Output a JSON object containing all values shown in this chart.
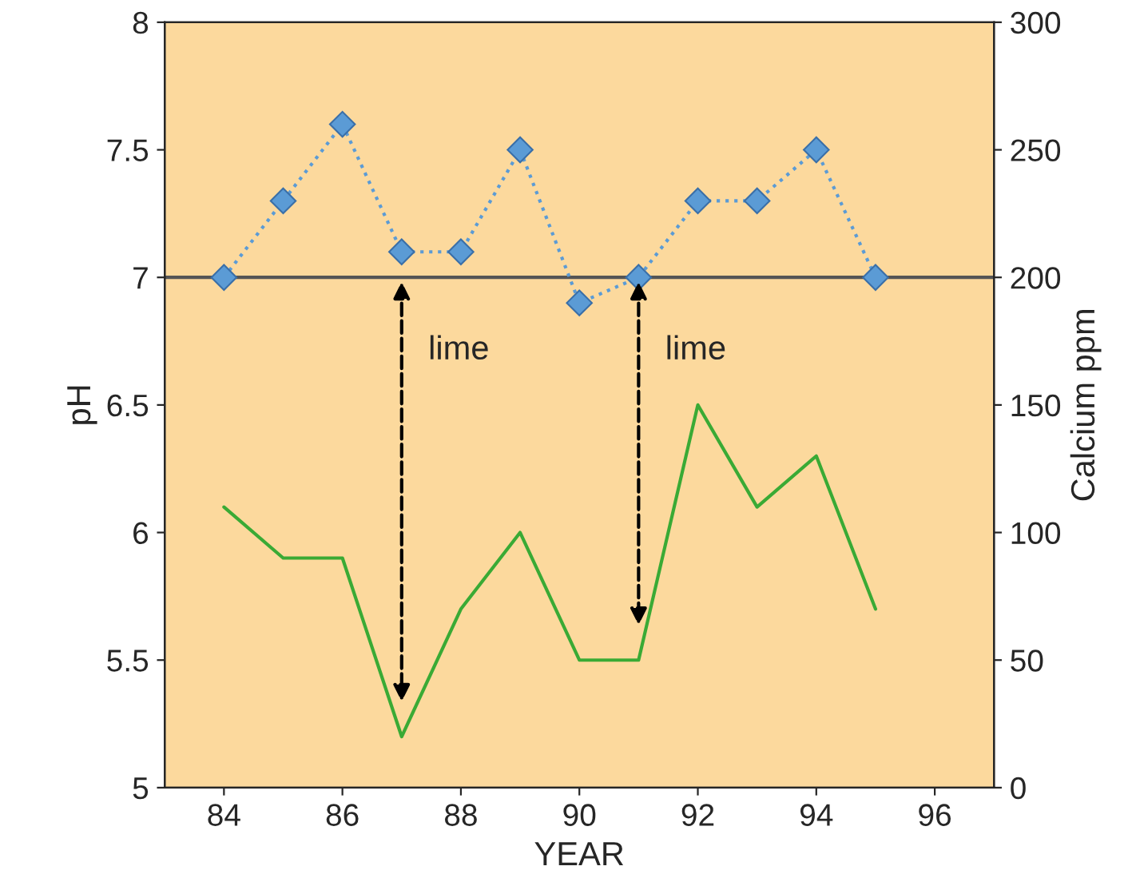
{
  "chart_data": {
    "type": "line",
    "xlabel": "YEAR",
    "ylabel": "pH",
    "y2label": "Calcium ppm",
    "x": [
      84,
      85,
      86,
      87,
      88,
      89,
      90,
      91,
      92,
      93,
      94,
      95
    ],
    "series": [
      {
        "color": "#5b9bd5",
        "values": [
          7.0,
          7.3,
          7.6,
          7.1,
          7.1,
          7.5,
          6.9,
          7.0,
          7.3,
          7.3,
          7.5,
          7.0
        ],
        "marker": "diamond",
        "line_style": "dotted"
      },
      {
        "color": "#3aaa35",
        "values": [
          110,
          90,
          90,
          20,
          70,
          100,
          50,
          50,
          150,
          110,
          130,
          70
        ],
        "axis": "y2",
        "marker": "none",
        "line_style": "solid"
      }
    ],
    "xlim": [
      83,
      97
    ],
    "xticks": [
      84,
      86,
      88,
      90,
      92,
      94,
      96
    ],
    "ylim": [
      5,
      8
    ],
    "yticks": [
      5,
      5.5,
      6,
      6.5,
      7,
      7.5,
      8
    ],
    "y2lim": [
      0,
      300
    ],
    "y2ticks": [
      0,
      50,
      100,
      150,
      200,
      250,
      300
    ],
    "ref_lines": [
      {
        "axis": "y",
        "value": 7,
        "color": "#555555"
      }
    ],
    "annotations": [
      {
        "text": "lime",
        "x": 87,
        "y": 7
      },
      {
        "text": "lime",
        "x": 91,
        "y": 7
      }
    ],
    "grid": false,
    "legend": false
  }
}
